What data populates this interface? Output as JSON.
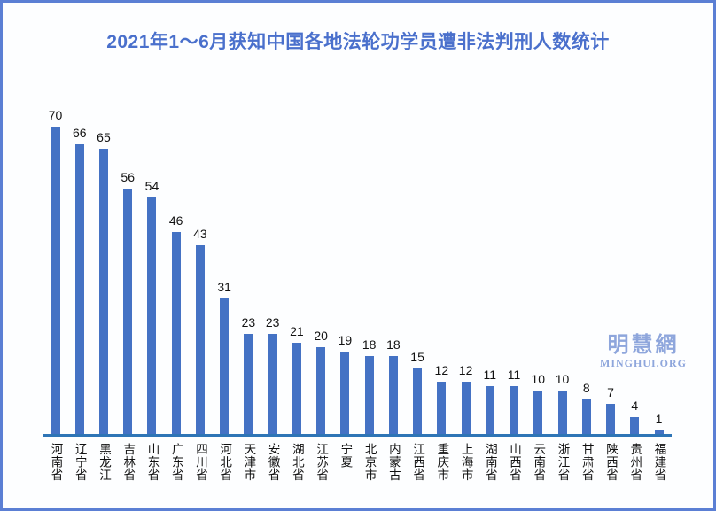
{
  "title": {
    "text": "2021年1～6月获知中国各地法轮功学员遭非法判刑人数统计"
  },
  "watermark": {
    "chinese": "明慧網",
    "url": "MINGHUI.ORG"
  },
  "colors": {
    "bar": "#4472C4",
    "axis_line": "#2E75B6",
    "title": "#4A70CC",
    "watermark": "#8EA6DC",
    "frame_border": "#5B7FD4",
    "value_label": "#111111"
  },
  "chart_data": {
    "type": "bar",
    "title": "2021年1～6月获知中国各地法轮功学员遭非法判刑人数统计",
    "categories": [
      "河南省",
      "辽宁省",
      "黑龙江",
      "吉林省",
      "山东省",
      "广东省",
      "四川省",
      "河北省",
      "天津市",
      "安徽省",
      "湖北省",
      "江苏省",
      "宁夏",
      "北京市",
      "内蒙古",
      "江西省",
      "重庆市",
      "上海市",
      "湖南省",
      "山西省",
      "云南省",
      "浙江省",
      "甘肃省",
      "陕西省",
      "贵州省",
      "福建省"
    ],
    "values": [
      70,
      66,
      65,
      56,
      54,
      46,
      43,
      31,
      23,
      23,
      21,
      20,
      19,
      18,
      18,
      15,
      12,
      12,
      11,
      11,
      10,
      10,
      8,
      7,
      4,
      1
    ],
    "xlabel": "",
    "ylabel": "",
    "ylim": [
      0,
      70
    ],
    "grid": false,
    "legend": false,
    "value_labels_shown": true,
    "category_label_orientation": "vertical"
  }
}
